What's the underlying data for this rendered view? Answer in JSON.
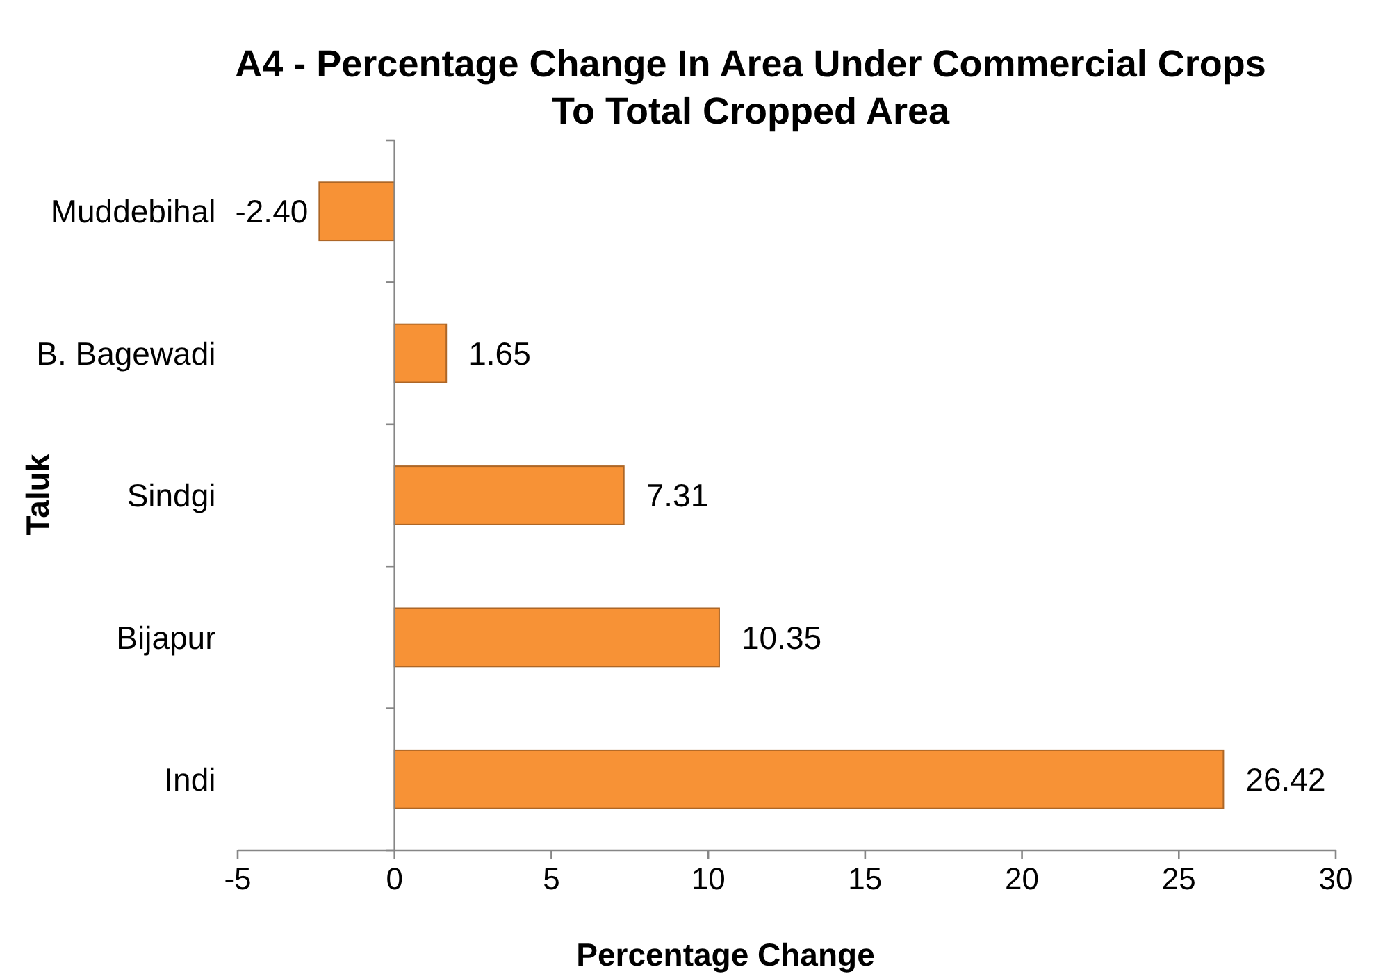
{
  "chart_data": {
    "type": "bar",
    "orientation": "horizontal",
    "title": "A4 - Percentage Change In Area Under Commercial Crops To Total Cropped Area",
    "xlabel": "Percentage Change",
    "ylabel": "Taluk",
    "categories": [
      "Muddebihal",
      "B. Bagewadi",
      "Sindgi",
      "Bijapur",
      "Indi"
    ],
    "values": [
      -2.4,
      1.65,
      7.31,
      10.35,
      26.42
    ],
    "value_labels": [
      "-2.40",
      "1.65",
      "7.31",
      "10.35",
      "26.42"
    ],
    "color": "#f79236",
    "xlim": [
      -5,
      30
    ],
    "xticks": [
      -5,
      0,
      5,
      10,
      15,
      20,
      25,
      30
    ]
  }
}
